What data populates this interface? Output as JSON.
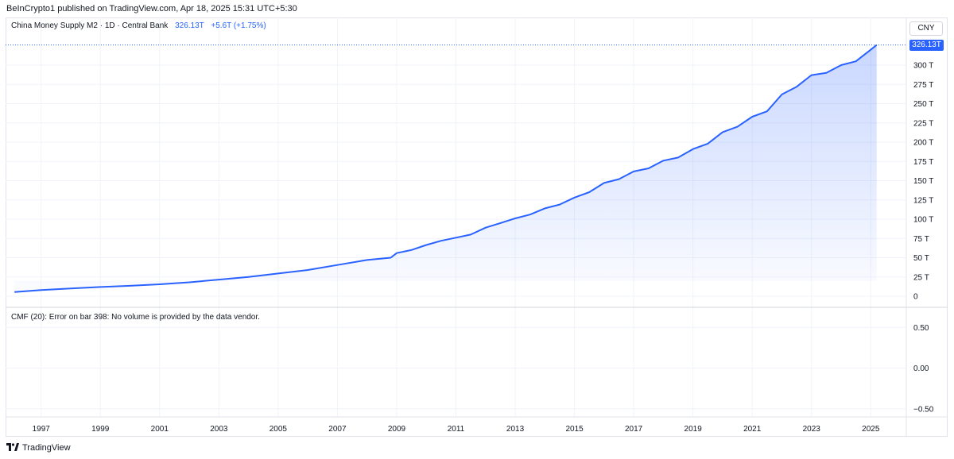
{
  "header": {
    "publisher_line": "BeInCrypto1 published on TradingView.com, Apr 18, 2025 15:31 UTC+5:30"
  },
  "legend": {
    "symbol": "China Money Supply M2 · 1D · Central Bank",
    "value": "326.13T",
    "change": "+5.6T (+1.75%)"
  },
  "currency_button": "CNY",
  "last_price_label": "326.13T",
  "indicator": {
    "message": "CMF (20): Error on bar 398: No volume is provided by the data vendor."
  },
  "footer": {
    "brand": "TradingView",
    "logo_icon": "tradingview-logo-icon"
  },
  "colors": {
    "line": "#2962ff",
    "fill_top": "#c7d7fb",
    "grid": "#f0f3fa",
    "text": "#131722"
  },
  "chart_data": [
    {
      "type": "area",
      "title": "",
      "xlabel": "",
      "ylabel": "",
      "ylim": [
        0,
        335
      ],
      "y_ticks": [
        "0",
        "25 T",
        "50 T",
        "75 T",
        "100 T",
        "125 T",
        "150 T",
        "175 T",
        "200 T",
        "225 T",
        "250 T",
        "275 T",
        "300 T"
      ],
      "y_tick_values": [
        0,
        25,
        50,
        75,
        100,
        125,
        150,
        175,
        200,
        225,
        250,
        275,
        300
      ],
      "x_ticks": [
        "1997",
        "1999",
        "2001",
        "2003",
        "2005",
        "2007",
        "2009",
        "2011",
        "2013",
        "2015",
        "2017",
        "2019",
        "2021",
        "2023",
        "2025"
      ],
      "x_tick_values": [
        1997,
        1999,
        2001,
        2003,
        2005,
        2007,
        2009,
        2011,
        2013,
        2015,
        2017,
        2019,
        2021,
        2023,
        2025
      ],
      "xlim": [
        1995.8,
        2026.2
      ],
      "grid": true,
      "series": [
        {
          "x": [
            1996.1,
            1997,
            1998,
            1999,
            2000,
            2001,
            2002,
            2003,
            2004,
            2005,
            2006,
            2007,
            2008,
            2008.8,
            2009,
            2009.5,
            2010,
            2010.5,
            2011,
            2011.5,
            2012,
            2012.5,
            2013,
            2013.5,
            2014,
            2014.5,
            2015,
            2015.5,
            2016,
            2016.5,
            2017,
            2017.5,
            2018,
            2018.5,
            2019,
            2019.5,
            2020,
            2020.5,
            2021,
            2021.5,
            2022,
            2022.5,
            2023,
            2023.5,
            2024,
            2024.5,
            2025,
            2025.2
          ],
          "values": [
            5.5,
            8,
            10,
            12,
            13.5,
            15.5,
            18,
            21.5,
            25,
            29.5,
            34,
            40.5,
            47,
            50,
            56,
            60,
            66.5,
            72,
            76,
            80,
            89,
            95,
            101,
            106,
            114,
            119,
            128,
            135,
            147,
            152,
            162,
            166,
            176,
            180,
            191,
            198,
            213,
            220,
            233,
            240,
            262,
            272,
            287,
            290,
            300,
            305,
            320,
            326.13
          ]
        }
      ]
    },
    {
      "type": "line",
      "title": "",
      "ylim": [
        -0.6,
        0.6
      ],
      "y_ticks": [
        "0.50",
        "0.00",
        "−0.50"
      ],
      "y_tick_values": [
        0.5,
        0,
        -0.5
      ],
      "grid": true,
      "series": []
    }
  ]
}
